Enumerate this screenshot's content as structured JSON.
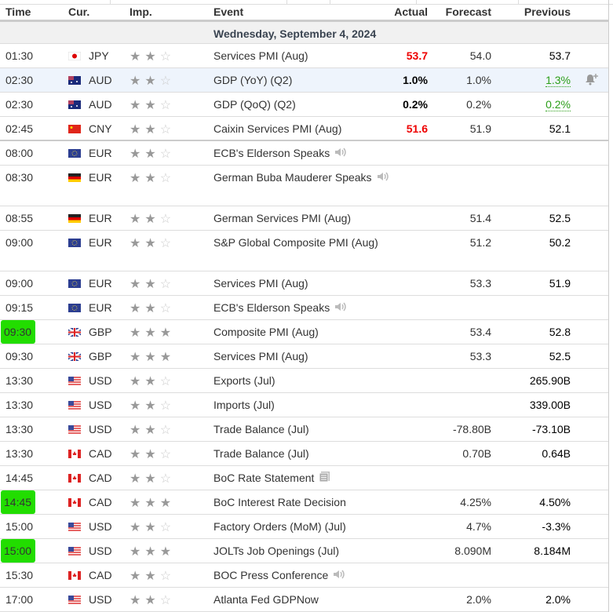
{
  "header": {
    "time": "Time",
    "currency": "Cur.",
    "importance": "Imp.",
    "event": "Event",
    "actual": "Actual",
    "forecast": "Forecast",
    "previous": "Previous"
  },
  "date_label": "Wednesday, September 4, 2024",
  "colors": {
    "negative": "#ee0000",
    "positive": "#2b9e18",
    "highlight": "#22dd00",
    "row_hover": "#eef4fc"
  },
  "rows": [
    {
      "time": "01:30",
      "cur": "JPY",
      "stars": 2,
      "event": "Services PMI (Aug)",
      "actual": "53.7",
      "actual_color": "red",
      "forecast": "54.0",
      "previous": "53.7"
    },
    {
      "time": "02:30",
      "cur": "AUD",
      "stars": 2,
      "event": "GDP (YoY) (Q2)",
      "actual": "1.0%",
      "forecast": "1.0%",
      "previous": "1.3%",
      "previous_color": "green",
      "hover": true,
      "bell": "bell-plus-icon"
    },
    {
      "time": "02:30",
      "cur": "AUD",
      "stars": 2,
      "event": "GDP (QoQ) (Q2)",
      "actual": "0.2%",
      "forecast": "0.2%",
      "previous": "0.2%",
      "previous_color": "green"
    },
    {
      "time": "02:45",
      "cur": "CNY",
      "stars": 2,
      "event": "Caixin Services PMI (Aug)",
      "actual": "51.6",
      "actual_color": "red",
      "forecast": "51.9",
      "previous": "52.1",
      "thick": true
    },
    {
      "time": "08:00",
      "cur": "EUR",
      "stars": 2,
      "event": "ECB's Elderson Speaks",
      "icon": "speaker-icon"
    },
    {
      "time": "08:30",
      "cur": "EUR",
      "flag": "DE",
      "stars": 2,
      "event": "German Buba Mauderer Speaks",
      "icon": "speaker-icon",
      "tall": true
    },
    {
      "time": "08:55",
      "cur": "EUR",
      "flag": "DE",
      "stars": 2,
      "event": "German Services PMI (Aug)",
      "forecast": "51.4",
      "previous": "52.5"
    },
    {
      "time": "09:00",
      "cur": "EUR",
      "stars": 2,
      "event": "S&P Global Composite PMI (Aug)",
      "forecast": "51.2",
      "previous": "50.2",
      "tall": true
    },
    {
      "time": "09:00",
      "cur": "EUR",
      "stars": 2,
      "event": "Services PMI (Aug)",
      "forecast": "53.3",
      "previous": "51.9"
    },
    {
      "time": "09:15",
      "cur": "EUR",
      "stars": 2,
      "event": "ECB's Elderson Speaks",
      "icon": "speaker-icon"
    },
    {
      "time": "09:30",
      "cur": "GBP",
      "stars": 3,
      "event": "Composite PMI (Aug)",
      "forecast": "53.4",
      "previous": "52.8",
      "marked": true
    },
    {
      "time": "09:30",
      "cur": "GBP",
      "stars": 3,
      "event": "Services PMI (Aug)",
      "forecast": "53.3",
      "previous": "52.5"
    },
    {
      "time": "13:30",
      "cur": "USD",
      "stars": 2,
      "event": "Exports (Jul)",
      "previous": "265.90B"
    },
    {
      "time": "13:30",
      "cur": "USD",
      "stars": 2,
      "event": "Imports (Jul)",
      "previous": "339.00B"
    },
    {
      "time": "13:30",
      "cur": "USD",
      "stars": 2,
      "event": "Trade Balance (Jul)",
      "forecast": "-78.80B",
      "previous": "-73.10B"
    },
    {
      "time": "13:30",
      "cur": "CAD",
      "stars": 2,
      "event": "Trade Balance (Jul)",
      "forecast": "0.70B",
      "previous": "0.64B"
    },
    {
      "time": "14:45",
      "cur": "CAD",
      "stars": 2,
      "event": "BoC Rate Statement",
      "icon": "document-icon"
    },
    {
      "time": "14:45",
      "cur": "CAD",
      "stars": 3,
      "event": "BoC Interest Rate Decision",
      "forecast": "4.25%",
      "previous": "4.50%",
      "marked": true
    },
    {
      "time": "15:00",
      "cur": "USD",
      "stars": 2,
      "event": "Factory Orders (MoM) (Jul)",
      "forecast": "4.7%",
      "previous": "-3.3%"
    },
    {
      "time": "15:00",
      "cur": "USD",
      "stars": 3,
      "event": "JOLTs Job Openings (Jul)",
      "forecast": "8.090M",
      "previous": "8.184M",
      "marked": true
    },
    {
      "time": "15:30",
      "cur": "CAD",
      "stars": 2,
      "event": "BOC Press Conference",
      "icon": "speaker-icon"
    },
    {
      "time": "17:00",
      "cur": "USD",
      "stars": 2,
      "event": "Atlanta Fed GDPNow",
      "forecast": "2.0%",
      "previous": "2.0%"
    }
  ]
}
